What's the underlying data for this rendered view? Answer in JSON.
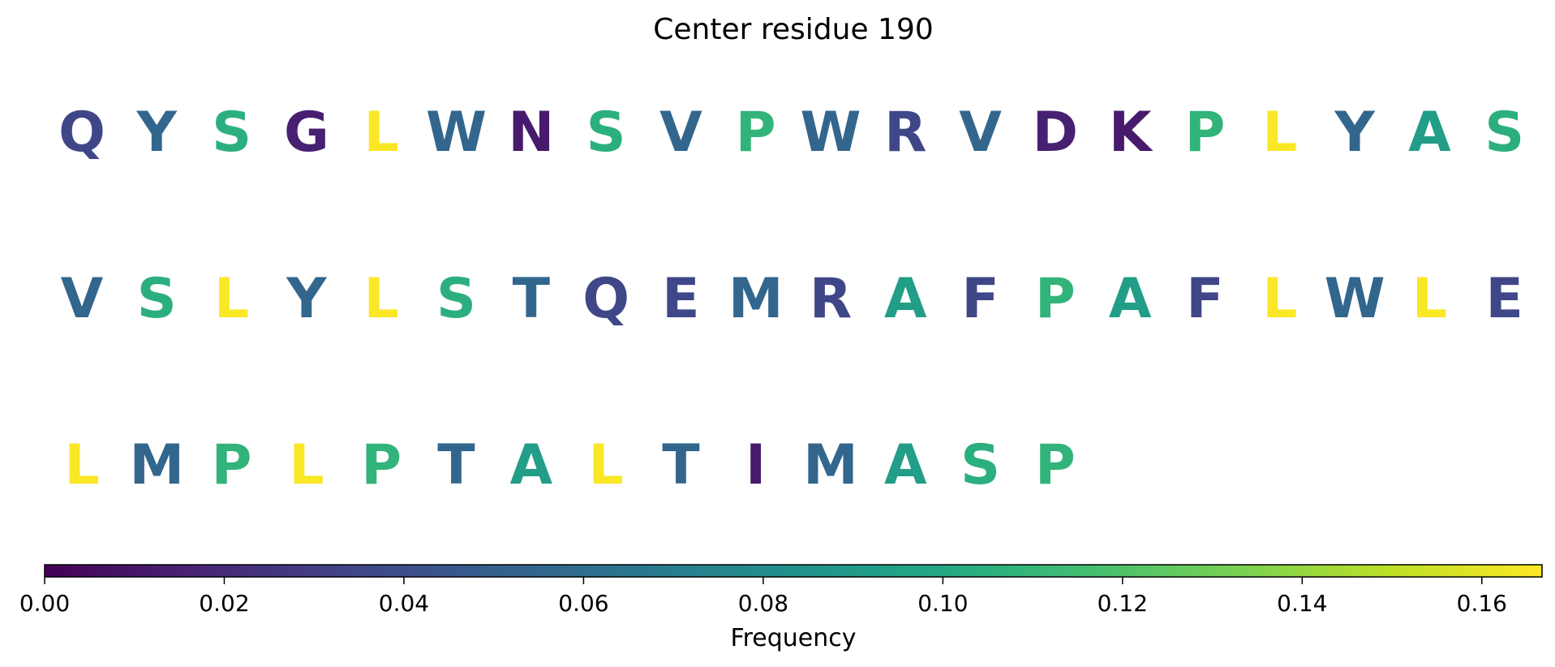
{
  "chart_data": {
    "type": "sequence-logo-grid",
    "title": "Center residue 190",
    "residues": [
      {
        "letter": "Q",
        "frequency": 0.035
      },
      {
        "letter": "Y",
        "frequency": 0.055
      },
      {
        "letter": "S",
        "frequency": 0.105
      },
      {
        "letter": "G",
        "frequency": 0.015
      },
      {
        "letter": "L",
        "frequency": 0.166
      },
      {
        "letter": "W",
        "frequency": 0.055
      },
      {
        "letter": "N",
        "frequency": 0.012
      },
      {
        "letter": "S",
        "frequency": 0.105
      },
      {
        "letter": "V",
        "frequency": 0.055
      },
      {
        "letter": "P",
        "frequency": 0.108
      },
      {
        "letter": "W",
        "frequency": 0.055
      },
      {
        "letter": "R",
        "frequency": 0.035
      },
      {
        "letter": "V",
        "frequency": 0.055
      },
      {
        "letter": "D",
        "frequency": 0.015
      },
      {
        "letter": "K",
        "frequency": 0.012
      },
      {
        "letter": "P",
        "frequency": 0.108
      },
      {
        "letter": "L",
        "frequency": 0.166
      },
      {
        "letter": "Y",
        "frequency": 0.055
      },
      {
        "letter": "A",
        "frequency": 0.092
      },
      {
        "letter": "S",
        "frequency": 0.105
      },
      {
        "letter": "V",
        "frequency": 0.055
      },
      {
        "letter": "S",
        "frequency": 0.105
      },
      {
        "letter": "L",
        "frequency": 0.166
      },
      {
        "letter": "Y",
        "frequency": 0.055
      },
      {
        "letter": "L",
        "frequency": 0.166
      },
      {
        "letter": "S",
        "frequency": 0.105
      },
      {
        "letter": "T",
        "frequency": 0.055
      },
      {
        "letter": "Q",
        "frequency": 0.035
      },
      {
        "letter": "E",
        "frequency": 0.035
      },
      {
        "letter": "M",
        "frequency": 0.055
      },
      {
        "letter": "R",
        "frequency": 0.035
      },
      {
        "letter": "A",
        "frequency": 0.092
      },
      {
        "letter": "F",
        "frequency": 0.035
      },
      {
        "letter": "P",
        "frequency": 0.108
      },
      {
        "letter": "A",
        "frequency": 0.092
      },
      {
        "letter": "F",
        "frequency": 0.035
      },
      {
        "letter": "L",
        "frequency": 0.166
      },
      {
        "letter": "W",
        "frequency": 0.055
      },
      {
        "letter": "L",
        "frequency": 0.166
      },
      {
        "letter": "E",
        "frequency": 0.035
      },
      {
        "letter": "L",
        "frequency": 0.166
      },
      {
        "letter": "M",
        "frequency": 0.055
      },
      {
        "letter": "P",
        "frequency": 0.108
      },
      {
        "letter": "L",
        "frequency": 0.166
      },
      {
        "letter": "P",
        "frequency": 0.108
      },
      {
        "letter": "T",
        "frequency": 0.055
      },
      {
        "letter": "A",
        "frequency": 0.092
      },
      {
        "letter": "L",
        "frequency": 0.166
      },
      {
        "letter": "T",
        "frequency": 0.055
      },
      {
        "letter": "I",
        "frequency": 0.012
      },
      {
        "letter": "M",
        "frequency": 0.055
      },
      {
        "letter": "A",
        "frequency": 0.092
      },
      {
        "letter": "S",
        "frequency": 0.105
      },
      {
        "letter": "P",
        "frequency": 0.108
      }
    ],
    "colorbar": {
      "label": "Frequency",
      "colormap": "viridis",
      "range": [
        0,
        0.1667
      ],
      "ticks": [
        0.0,
        0.02,
        0.04,
        0.06,
        0.08,
        0.1,
        0.12,
        0.14,
        0.16
      ],
      "tick_labels": [
        "0.00",
        "0.02",
        "0.04",
        "0.06",
        "0.08",
        "0.10",
        "0.12",
        "0.14",
        "0.16"
      ],
      "orientation": "horizontal"
    }
  }
}
